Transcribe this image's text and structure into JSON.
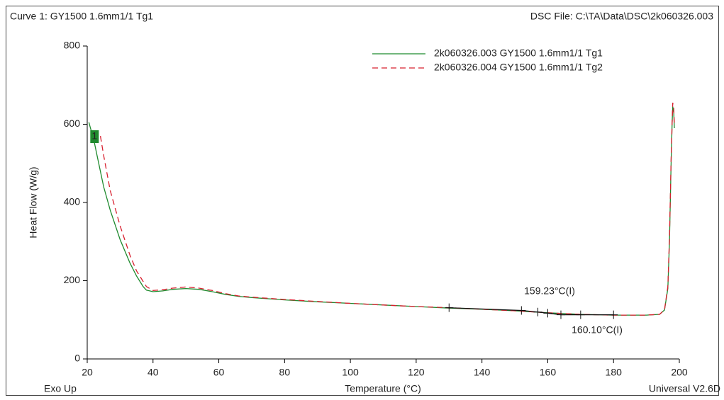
{
  "chart_data": {
    "type": "line",
    "title": "Curve 1: GY1500   1.6mm1/1   Tg1",
    "subtitle": "DSC File: C:\\TA\\Data\\DSC\\2k060326.003",
    "x_label": "Temperature (°C)",
    "y_label": "Heat Flow (W/g)",
    "corner_left": "Exo Up",
    "corner_right": "Universal V2.6D",
    "xlim": [
      20,
      200
    ],
    "xticks": [
      20,
      40,
      60,
      80,
      100,
      120,
      140,
      160,
      180,
      200
    ],
    "ylim": [
      0,
      800
    ],
    "yticks": [
      0,
      200,
      400,
      600,
      800
    ],
    "grid": false,
    "legend": "top-right",
    "series": [
      {
        "name": "2k060326.003  GY1500  1.6mm1/1  Tg1",
        "color": "#1f8a2e",
        "line_style": "solid",
        "label": "1",
        "x": [
          20.5,
          21,
          22,
          23,
          25,
          27,
          30,
          33,
          35,
          37,
          38,
          40,
          43,
          46,
          50,
          54,
          58,
          62,
          66,
          70,
          80,
          90,
          100,
          110,
          120,
          130,
          140,
          150,
          160,
          170,
          180,
          190,
          194,
          195.5,
          196.5,
          197,
          197.5,
          197.8,
          198,
          198.3,
          198.5
        ],
        "values": [
          605,
          590,
          560,
          520,
          440,
          380,
          305,
          245,
          212,
          185,
          176,
          172,
          174,
          178,
          180,
          178,
          172,
          165,
          160,
          157,
          151,
          146,
          142,
          138,
          134,
          130,
          127,
          123,
          118,
          114,
          112,
          112,
          114,
          125,
          180,
          300,
          500,
          600,
          645,
          630,
          590
        ]
      },
      {
        "name": "2k060326.004  GY1500  1.6mm1/1  Tg2",
        "color": "#d8202f",
        "line_style": "dashed",
        "x": [
          24,
          25,
          27,
          30,
          33,
          35,
          37,
          38,
          40,
          43,
          46,
          50,
          54,
          58,
          62,
          66,
          70,
          80,
          90,
          100,
          110,
          120,
          130,
          140,
          150,
          160,
          170,
          180,
          190,
          194,
          195.5,
          196.5,
          197,
          197.5,
          197.8,
          198,
          198.3,
          198.5
        ],
        "values": [
          570,
          520,
          430,
          340,
          265,
          225,
          198,
          185,
          175,
          177,
          181,
          184,
          181,
          175,
          167,
          161,
          158,
          152,
          147,
          142,
          138,
          134,
          131,
          127,
          123,
          118,
          114,
          112,
          112,
          114,
          126,
          185,
          310,
          510,
          600,
          655,
          640,
          600
        ]
      }
    ],
    "analysis_marks": {
      "x": [
        130,
        152,
        157,
        160,
        164,
        170,
        180
      ],
      "values": [
        131,
        124,
        120,
        117,
        113,
        113,
        113
      ]
    },
    "annotations": [
      {
        "text": "159.23°C(I)",
        "color": "#111111"
      },
      {
        "text": "160.10°C(I)",
        "color": "#d8202f"
      }
    ]
  }
}
